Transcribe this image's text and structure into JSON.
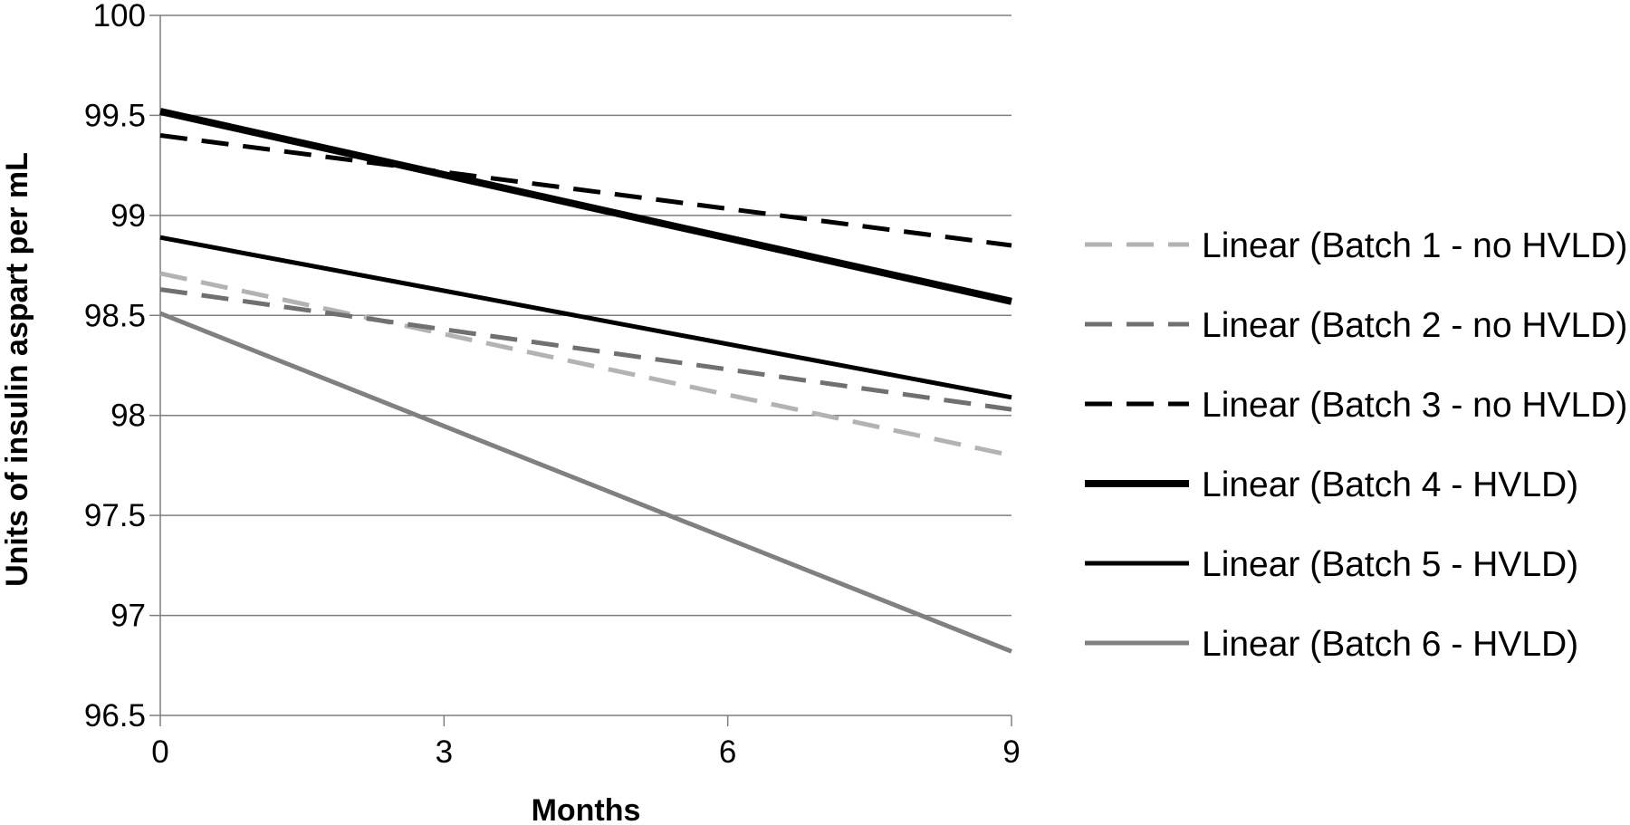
{
  "chart_data": {
    "type": "line",
    "title": "",
    "xlabel": "Months",
    "ylabel": "Units of insulin aspart per mL",
    "xlim": [
      0,
      9
    ],
    "ylim": [
      96.5,
      100
    ],
    "x_ticks": [
      "0",
      "3",
      "6",
      "9"
    ],
    "x_tick_values": [
      0,
      3,
      6,
      9
    ],
    "y_ticks": [
      "96.5",
      "97",
      "97.5",
      "98",
      "98.5",
      "99",
      "99.5",
      "100"
    ],
    "y_tick_values": [
      96.5,
      97,
      97.5,
      98,
      98.5,
      99,
      99.5,
      100
    ],
    "grid": "horizontal",
    "legend_position": "right",
    "series": [
      {
        "name": "Linear (Batch 1 - no HVLD)",
        "x": [
          0,
          9
        ],
        "y": [
          98.71,
          97.8
        ],
        "color": "#b3b3b3",
        "style": "dashed",
        "weight": "medium"
      },
      {
        "name": "Linear (Batch 2 - no HVLD)",
        "x": [
          0,
          9
        ],
        "y": [
          98.63,
          98.03
        ],
        "color": "#707070",
        "style": "dashed",
        "weight": "medium"
      },
      {
        "name": "Linear (Batch 3 - no HVLD)",
        "x": [
          0,
          9
        ],
        "y": [
          99.4,
          98.85
        ],
        "color": "#000000",
        "style": "dashed",
        "weight": "medium"
      },
      {
        "name": "Linear (Batch 4  - HVLD)",
        "x": [
          0,
          9
        ],
        "y": [
          99.52,
          98.57
        ],
        "color": "#000000",
        "style": "solid",
        "weight": "thick"
      },
      {
        "name": "Linear (Batch 5 - HVLD)",
        "x": [
          0,
          9
        ],
        "y": [
          98.89,
          98.09
        ],
        "color": "#000000",
        "style": "solid",
        "weight": "medium"
      },
      {
        "name": "Linear (Batch 6  - HVLD)",
        "x": [
          0,
          9
        ],
        "y": [
          98.51,
          96.82
        ],
        "color": "#808080",
        "style": "solid",
        "weight": "medium"
      }
    ]
  }
}
